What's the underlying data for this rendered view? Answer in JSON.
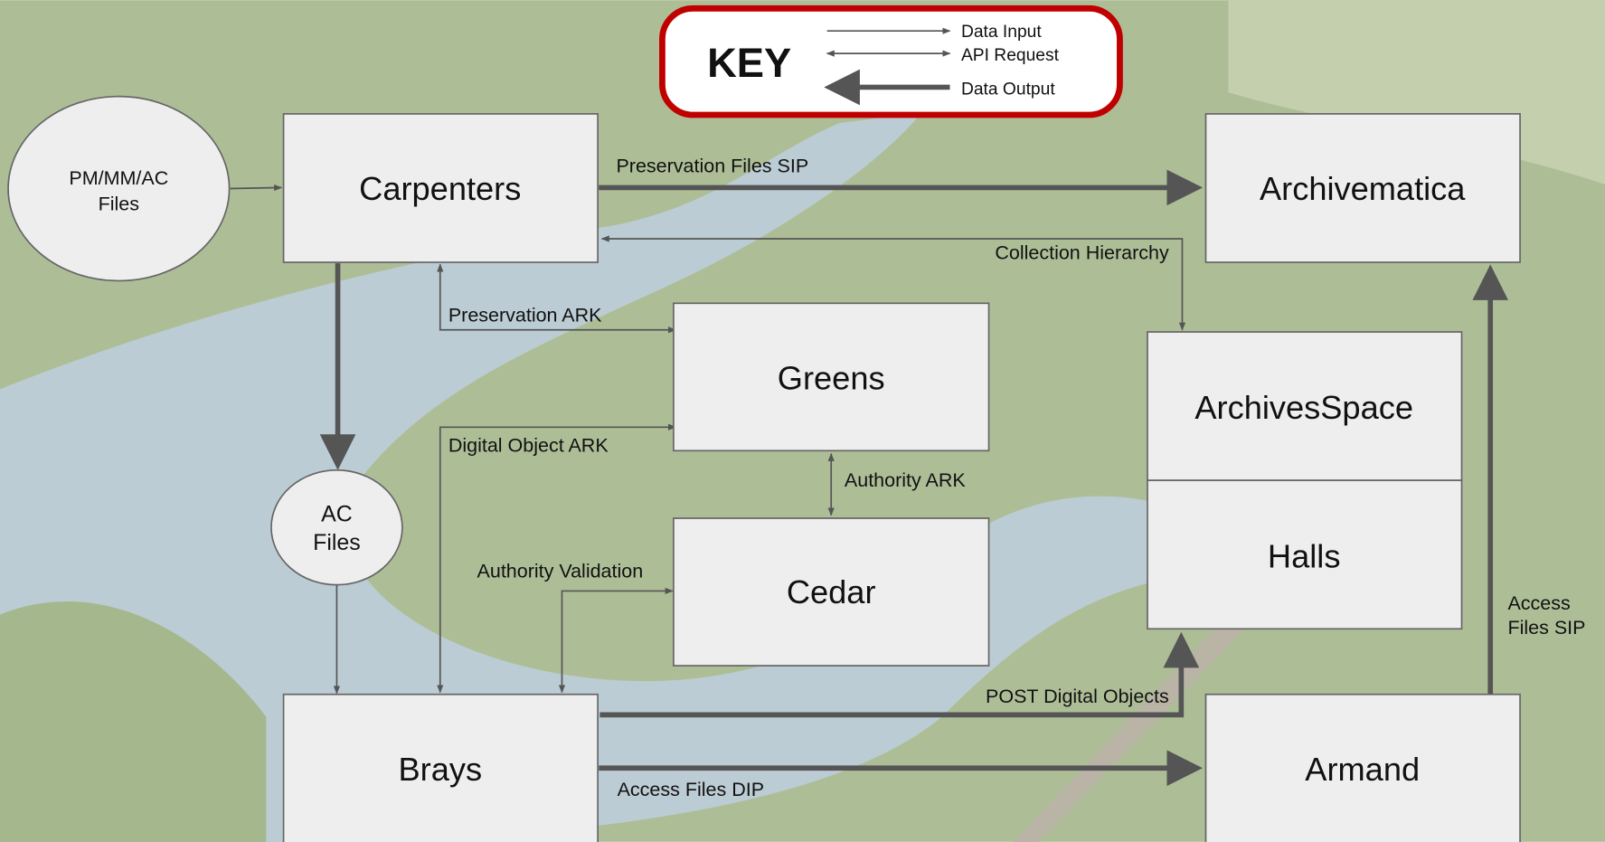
{
  "key": {
    "title": "KEY",
    "items": [
      "Data Input",
      "API Request",
      "Data Output"
    ]
  },
  "nodes": [
    {
      "label": [
        "PM/MM/AC",
        "Files"
      ]
    },
    {
      "label": [
        "Carpenters"
      ]
    },
    {
      "label": [
        "Archivematica"
      ]
    },
    {
      "label": [
        "Greens"
      ]
    },
    {
      "label": [
        "ArchivesSpace"
      ]
    },
    {
      "label": [
        "Halls"
      ]
    },
    {
      "label": [
        "AC",
        "Files"
      ]
    },
    {
      "label": [
        "Cedar"
      ]
    },
    {
      "label": [
        "Brays"
      ]
    },
    {
      "label": [
        "Armand"
      ]
    }
  ],
  "edges": [
    {
      "label": [
        "Preservation Files SIP"
      ]
    },
    {
      "label": [
        "Collection Hierarchy"
      ]
    },
    {
      "label": [
        "Preservation ARK"
      ]
    },
    {
      "label": [
        "Digital Object ARK"
      ]
    },
    {
      "label": [
        "Authority ARK"
      ]
    },
    {
      "label": [
        "Authority Validation"
      ]
    },
    {
      "label": [
        "POST Digital Objects"
      ]
    },
    {
      "label": [
        "Access Files DIP"
      ]
    },
    {
      "label": [
        "Access",
        "Files SIP"
      ]
    }
  ]
}
